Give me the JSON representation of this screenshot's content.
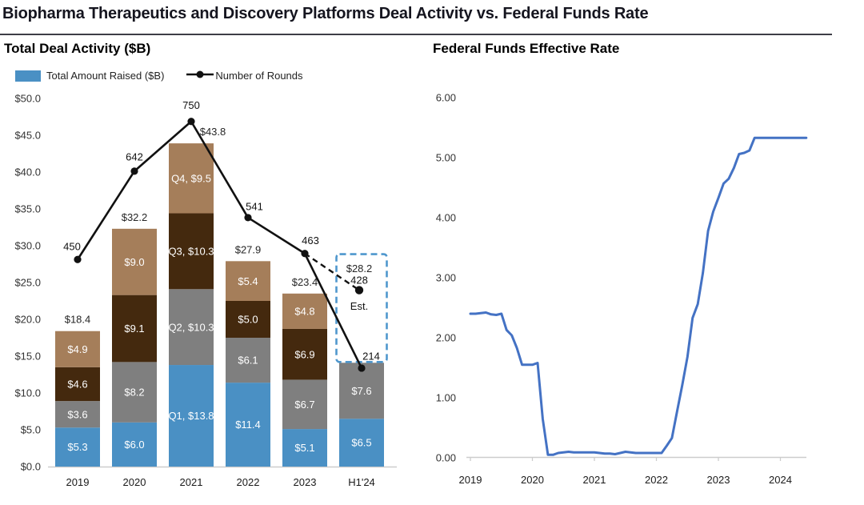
{
  "header": {
    "title": "Biopharma Therapeutics and Discovery Platforms Deal Activity vs. Federal Funds Rate"
  },
  "colors": {
    "q1_blue": "#4A90C4",
    "q2_gray": "#7F7F7F",
    "q3_darkbrown": "#44290E",
    "q4_lightbrown": "#A57E5A",
    "rounds_line": "#111111",
    "estimate_box": "#4F97CD",
    "ffr_line": "#4472C4",
    "axis_line": "#CDCDCD",
    "tick_text": "#333333"
  },
  "chart_data": [
    {
      "type": "bar",
      "title": "Total Deal Activity ($B)",
      "legend": {
        "bar_label": "Total Amount Raised ($B)",
        "line_label": "Number of Rounds"
      },
      "categories": [
        "2019",
        "2020",
        "2021",
        "2022",
        "2023",
        "H1'24"
      ],
      "series": [
        {
          "name": "Q1",
          "color": "#4A90C4",
          "values": [
            5.3,
            6.0,
            13.8,
            11.4,
            5.1,
            6.5
          ]
        },
        {
          "name": "Q2",
          "color": "#7F7F7F",
          "values": [
            3.6,
            8.2,
            10.3,
            6.1,
            6.7,
            7.6
          ]
        },
        {
          "name": "Q3",
          "color": "#44290E",
          "values": [
            4.6,
            9.1,
            10.3,
            5.0,
            6.9,
            null
          ]
        },
        {
          "name": "Q4",
          "color": "#A57E5A",
          "values": [
            4.9,
            9.0,
            9.5,
            5.4,
            4.8,
            null
          ]
        }
      ],
      "segment_labels": [
        [
          "$5.3",
          "$3.6",
          "$4.6",
          "$4.9"
        ],
        [
          "$6.0",
          "$8.2",
          "$9.1",
          "$9.0"
        ],
        [
          "Q1, $13.8",
          "Q2, $10.3",
          "Q3, $10.3",
          "Q4, $9.5"
        ],
        [
          "$11.4",
          "$6.1",
          "$5.0",
          "$5.4"
        ],
        [
          "$5.1",
          "$6.7",
          "$6.9",
          "$4.8"
        ],
        [
          "$6.5",
          "$7.6"
        ]
      ],
      "totals_labels": [
        "$18.4",
        "$32.2",
        "$43.8",
        "$27.9",
        "$23.4",
        ""
      ],
      "rounds": {
        "name": "Number of Rounds",
        "values": [
          450,
          642,
          750,
          541,
          463,
          214
        ],
        "labels": [
          "450",
          "642",
          "750",
          "541",
          "463",
          "214"
        ]
      },
      "estimate": {
        "total_label": "$28.2",
        "total_value": 28.2,
        "rounds_label": "428",
        "rounds_value": 428,
        "suffix": "Est.",
        "box_color": "#4F97CD"
      },
      "ylim": [
        0,
        50
      ],
      "rounds_ylim": [
        0,
        800
      ],
      "ytick_values": [
        0,
        5,
        10,
        15,
        20,
        25,
        30,
        35,
        40,
        45,
        50
      ],
      "ytick_labels": [
        "$0.0",
        "$5.0",
        "$10.0",
        "$15.0",
        "$20.0",
        "$25.0",
        "$30.0",
        "$35.0",
        "$40.0",
        "$45.0",
        "$50.0"
      ],
      "grid": false,
      "legend_position": "top-left"
    },
    {
      "type": "line",
      "title": "Federal Funds Effective Rate",
      "x_start": "2019-01",
      "x_end": "2024-06",
      "monthly_values": [
        2.4,
        2.4,
        2.41,
        2.42,
        2.39,
        2.38,
        2.4,
        2.13,
        2.04,
        1.83,
        1.55,
        1.55,
        1.55,
        1.58,
        0.65,
        0.05,
        0.05,
        0.08,
        0.09,
        0.1,
        0.09,
        0.09,
        0.09,
        0.09,
        0.09,
        0.08,
        0.07,
        0.07,
        0.06,
        0.08,
        0.1,
        0.09,
        0.08,
        0.08,
        0.08,
        0.08,
        0.08,
        0.08,
        0.2,
        0.33,
        0.77,
        1.21,
        1.68,
        2.33,
        2.56,
        3.08,
        3.78,
        4.1,
        4.33,
        4.57,
        4.65,
        4.83,
        5.06,
        5.08,
        5.12,
        5.33,
        5.33,
        5.33,
        5.33,
        5.33,
        5.33,
        5.33,
        5.33,
        5.33,
        5.33,
        5.33
      ],
      "line_color": "#4472C4",
      "ylim": [
        0,
        6
      ],
      "ytick_values": [
        0,
        1,
        2,
        3,
        4,
        5,
        6
      ],
      "ytick_labels": [
        "0.00",
        "1.00",
        "2.00",
        "3.00",
        "4.00",
        "5.00",
        "6.00"
      ],
      "xtick_labels": [
        "2019",
        "2020",
        "2021",
        "2022",
        "2023",
        "2024"
      ],
      "grid": false
    }
  ]
}
